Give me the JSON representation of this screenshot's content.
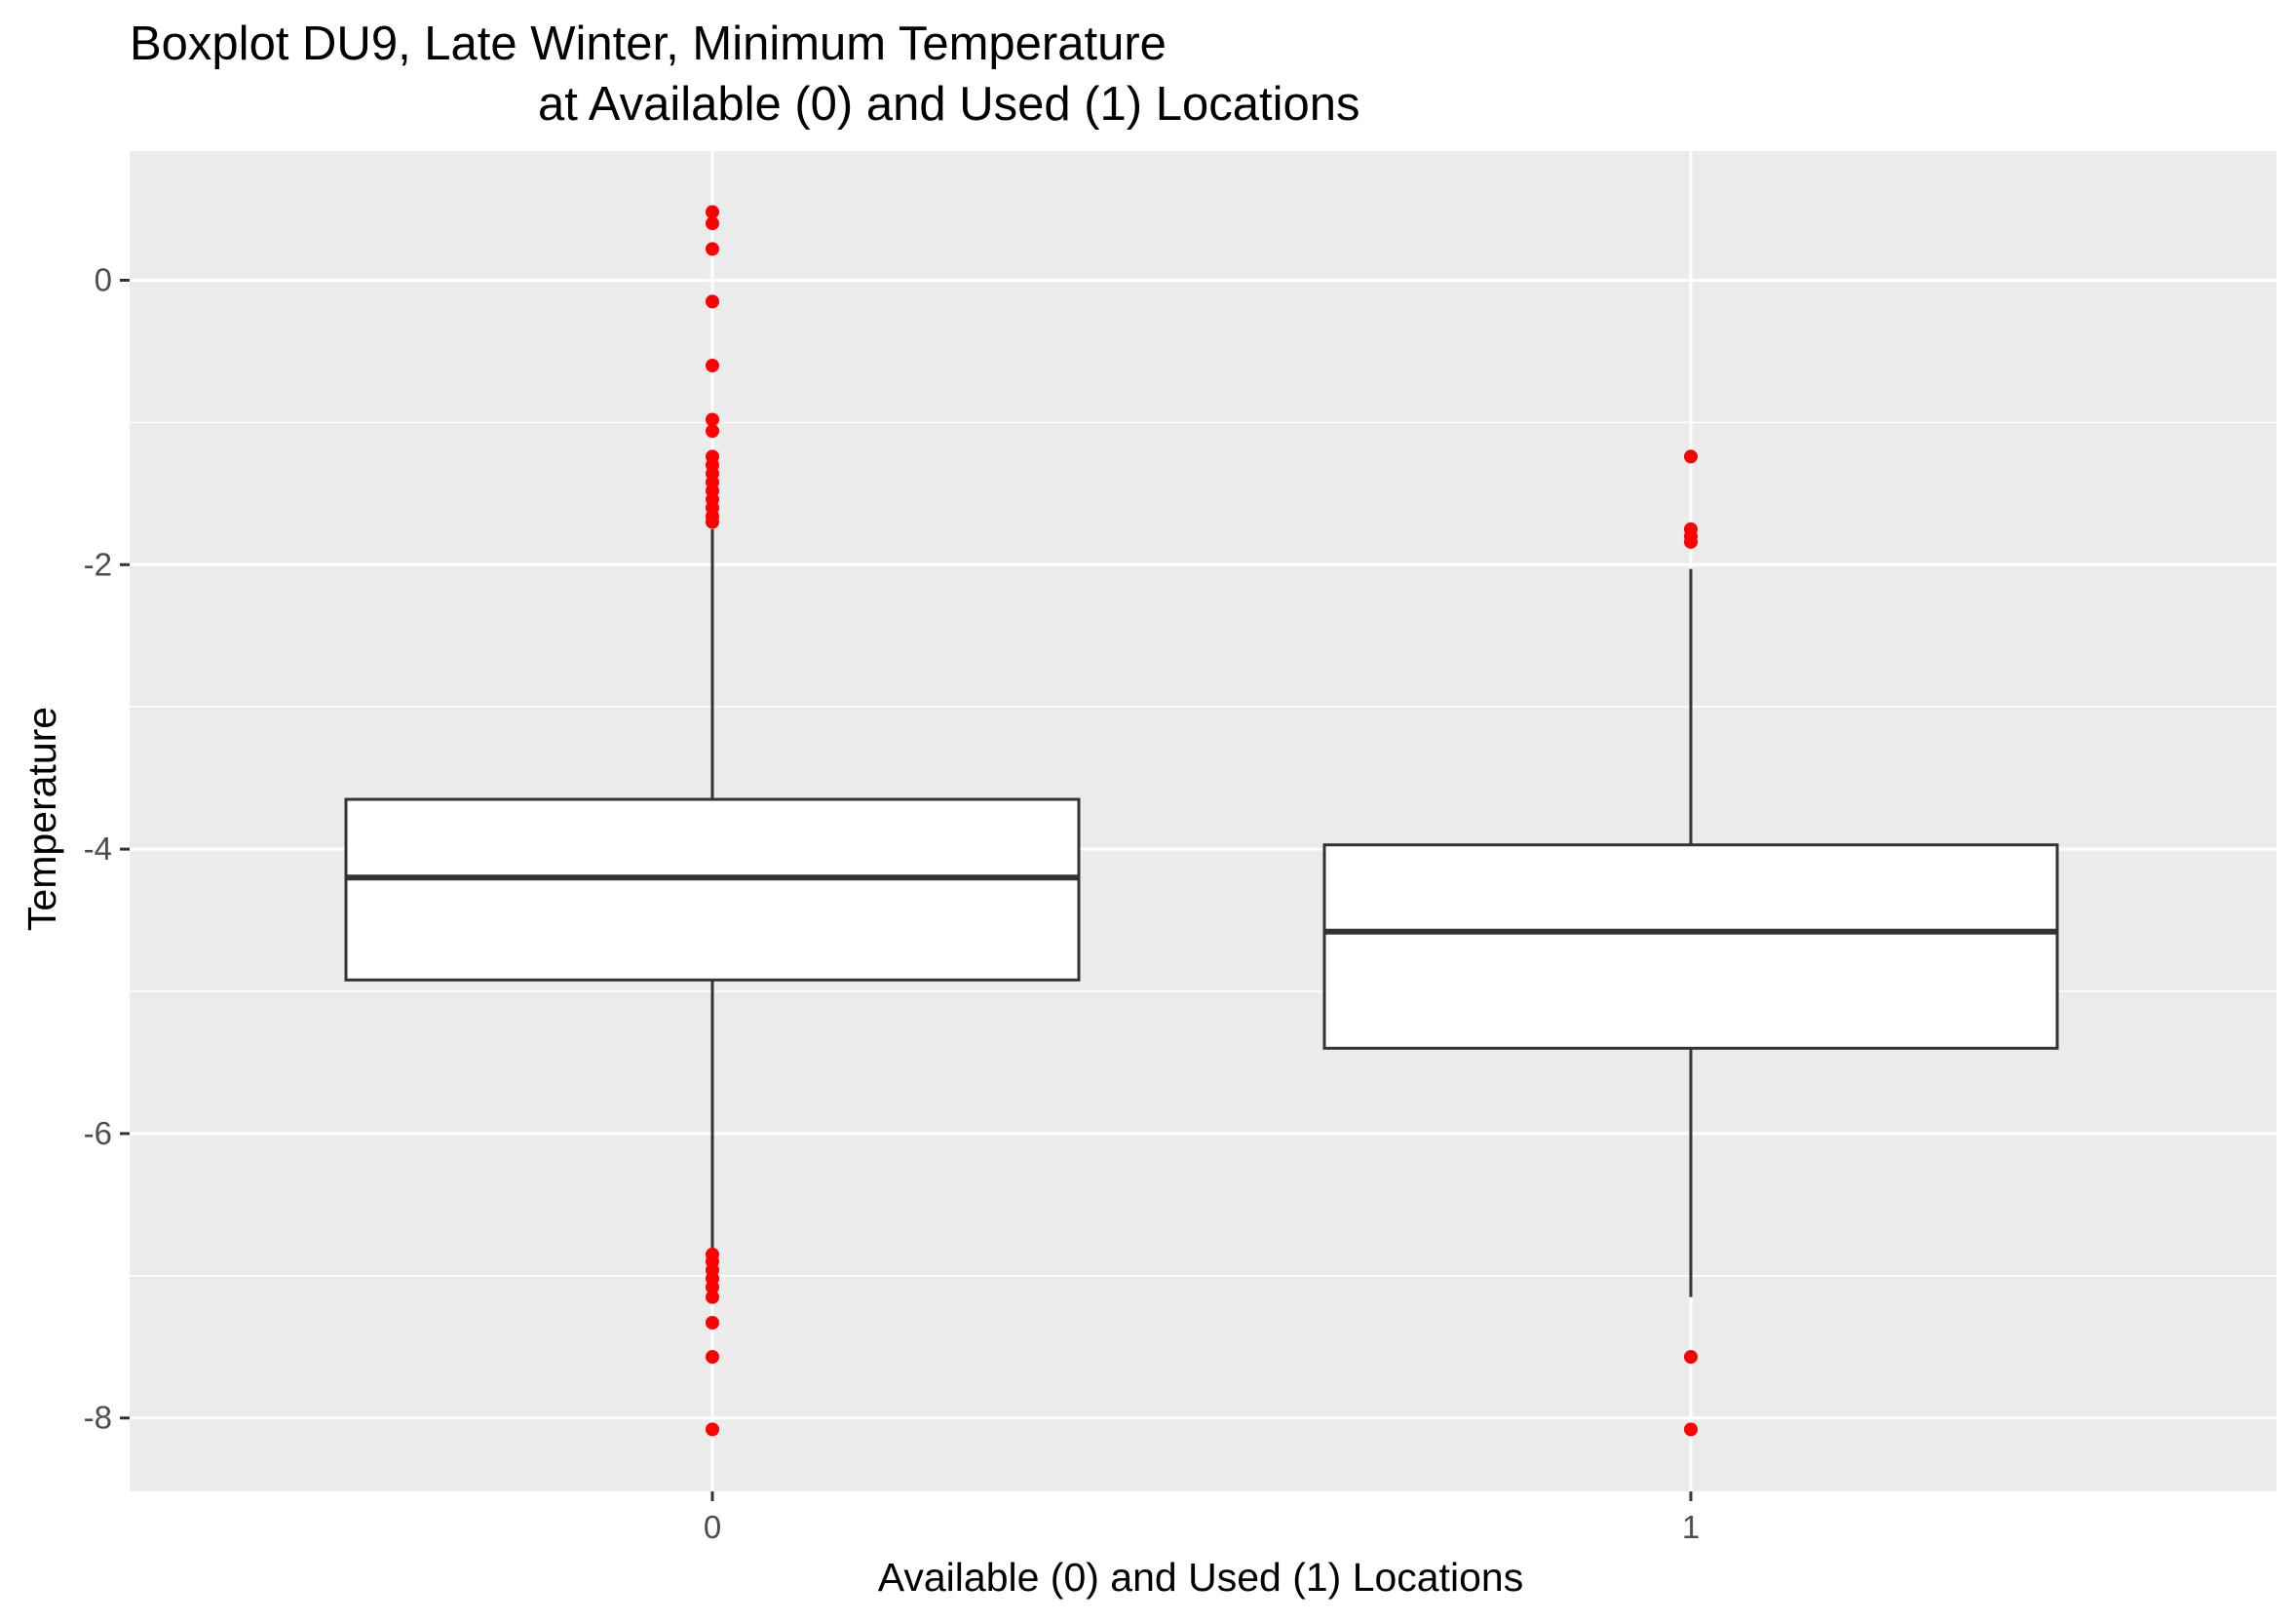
{
  "chart_data": {
    "type": "box",
    "title_line1": "Boxplot DU9, Late Winter, Minimum Temperature",
    "title_line2": "at Available (0) and Used (1) Locations",
    "xlabel": "Available (0) and Used (1) Locations",
    "ylabel": "Temperature",
    "ylim": [
      -8.5,
      0.9
    ],
    "yticks": [
      0,
      -2,
      -4,
      -6,
      -8
    ],
    "ytick_labels": [
      "0",
      "-2",
      "-4",
      "-6",
      "-8"
    ],
    "grid": true,
    "panel_color": "#ebebeb",
    "grid_color": "#ffffff",
    "box_fill": "#ffffff",
    "box_stroke": "#333333",
    "outlier_color": "#ff0000",
    "categories": [
      "0",
      "1"
    ],
    "boxes": [
      {
        "category": "0",
        "q1": -4.92,
        "median": -4.2,
        "q3": -3.65,
        "whisker_low": -6.85,
        "whisker_high": -1.75,
        "outliers": [
          0.48,
          0.4,
          0.22,
          -0.15,
          -0.6,
          -0.98,
          -1.06,
          -1.24,
          -1.3,
          -1.36,
          -1.42,
          -1.48,
          -1.54,
          -1.6,
          -1.66,
          -1.7,
          -6.85,
          -6.9,
          -6.96,
          -7.02,
          -7.08,
          -7.15,
          -7.33,
          -7.57,
          -8.08
        ]
      },
      {
        "category": "1",
        "q1": -5.4,
        "median": -4.58,
        "q3": -3.97,
        "whisker_low": -7.15,
        "whisker_high": -2.03,
        "outliers": [
          -1.24,
          -1.75,
          -1.8,
          -1.84,
          -7.57,
          -8.08
        ]
      }
    ]
  }
}
